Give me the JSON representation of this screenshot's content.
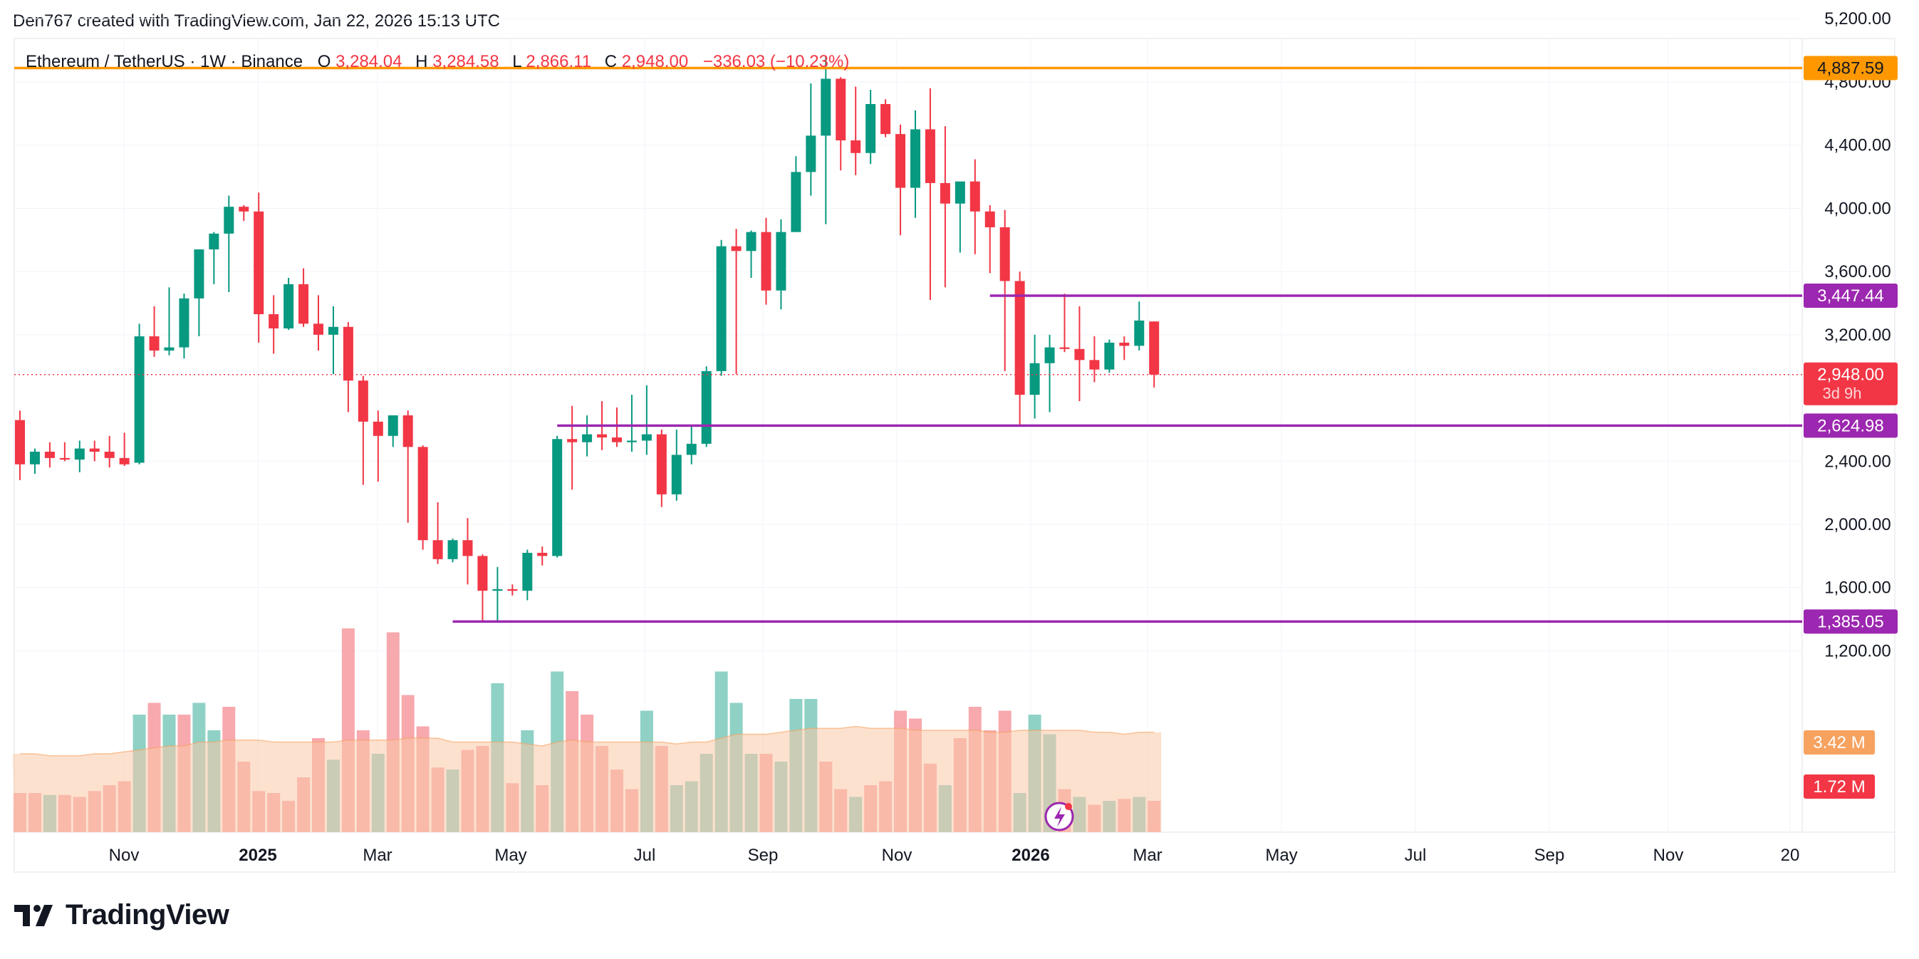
{
  "credit": "Den767 created with TradingView.com, Jan 22, 2026 15:13 UTC",
  "brand": "TradingView",
  "header": {
    "symbol": "Ethereum / TetherUS · 1W · Binance",
    "open_label": "O",
    "open": "3,284.04",
    "high_label": "H",
    "high": "3,284.58",
    "low_label": "L",
    "low": "2,866.11",
    "close_label": "C",
    "close": "2,948.00",
    "change": "−336.03 (−10.23%)"
  },
  "colors": {
    "up": "#089981",
    "down": "#f23645",
    "vol_up": "#8fd1c5",
    "vol_down": "#f7a9ad",
    "vma_fill": "#fbc8a8",
    "vma_line": "#f7a25f",
    "orange_level": "#ff9800",
    "purple_level": "#9c27b0",
    "grid": "#f0f3fa",
    "axis_text": "#131722"
  },
  "chart_data": {
    "type": "candlestick",
    "timeframe": "1W",
    "y_axis": {
      "range": [
        1000,
        5350
      ],
      "ticks": [
        "1,200.00",
        "1,600.00",
        "2,000.00",
        "2,400.00",
        "3,200.00",
        "3,600.00",
        "4,000.00",
        "4,400.00",
        "4,800.00",
        "5,200.00"
      ]
    },
    "x_axis": {
      "labels": [
        {
          "text": "Nov",
          "bold": false
        },
        {
          "text": "2025",
          "bold": true
        },
        {
          "text": "Mar",
          "bold": false
        },
        {
          "text": "May",
          "bold": false
        },
        {
          "text": "Jul",
          "bold": false
        },
        {
          "text": "Sep",
          "bold": false
        },
        {
          "text": "Nov",
          "bold": false
        },
        {
          "text": "2026",
          "bold": true
        },
        {
          "text": "Mar",
          "bold": false
        },
        {
          "text": "May",
          "bold": false
        },
        {
          "text": "Jul",
          "bold": false
        },
        {
          "text": "Sep",
          "bold": false
        },
        {
          "text": "Nov",
          "bold": false
        },
        {
          "text": "20",
          "bold": false
        }
      ]
    },
    "price_labels": {
      "orange_level": "4,887.59",
      "upper_purple": "3,447.44",
      "current": "2,948.00",
      "countdown": "3d 9h",
      "lower_purple": "2,624.98",
      "bottom_purple": "1,385.05",
      "volume_ma": "3.42 M",
      "volume": "1.72 M"
    },
    "levels": [
      {
        "name": "orange-resistance",
        "price": 4887.59,
        "start_index": 0
      },
      {
        "name": "upper-purple",
        "price": 3447.44,
        "start_index": 65
      },
      {
        "name": "lower-purple",
        "price": 2624.98,
        "start_index": 36
      },
      {
        "name": "bottom-purple",
        "price": 1385.05,
        "start_index": 29
      }
    ],
    "candles": [
      [
        2660,
        2720,
        2280,
        2380
      ],
      [
        2380,
        2480,
        2320,
        2460
      ],
      [
        2460,
        2520,
        2360,
        2420
      ],
      [
        2420,
        2520,
        2400,
        2410
      ],
      [
        2410,
        2530,
        2330,
        2480
      ],
      [
        2480,
        2530,
        2400,
        2460
      ],
      [
        2460,
        2560,
        2360,
        2420
      ],
      [
        2420,
        2580,
        2370,
        2380
      ],
      [
        2390,
        3270,
        2380,
        3190
      ],
      [
        3190,
        3380,
        3060,
        3100
      ],
      [
        3100,
        3500,
        3070,
        3120
      ],
      [
        3120,
        3460,
        3050,
        3430
      ],
      [
        3430,
        3740,
        3190,
        3740
      ],
      [
        3740,
        3850,
        3520,
        3840
      ],
      [
        3840,
        4080,
        3470,
        4010
      ],
      [
        4010,
        4020,
        3920,
        3980
      ],
      [
        3980,
        4100,
        3150,
        3330
      ],
      [
        3330,
        3450,
        3080,
        3240
      ],
      [
        3240,
        3560,
        3230,
        3520
      ],
      [
        3520,
        3620,
        3250,
        3270
      ],
      [
        3270,
        3450,
        3100,
        3200
      ],
      [
        3200,
        3380,
        2950,
        3250
      ],
      [
        3250,
        3280,
        2710,
        2910
      ],
      [
        2910,
        2940,
        2250,
        2650
      ],
      [
        2650,
        2720,
        2270,
        2560
      ],
      [
        2560,
        2690,
        2490,
        2690
      ],
      [
        2690,
        2720,
        2010,
        2490
      ],
      [
        2490,
        2500,
        1840,
        1900
      ],
      [
        1900,
        2140,
        1750,
        1780
      ],
      [
        1780,
        1910,
        1760,
        1900
      ],
      [
        1900,
        2040,
        1620,
        1800
      ],
      [
        1800,
        1810,
        1380,
        1580
      ],
      [
        1580,
        1730,
        1390,
        1590
      ],
      [
        1590,
        1620,
        1550,
        1580
      ],
      [
        1580,
        1840,
        1520,
        1820
      ],
      [
        1820,
        1860,
        1740,
        1800
      ],
      [
        1800,
        2560,
        1790,
        2540
      ],
      [
        2540,
        2750,
        2220,
        2520
      ],
      [
        2520,
        2690,
        2430,
        2570
      ],
      [
        2570,
        2780,
        2470,
        2550
      ],
      [
        2550,
        2740,
        2490,
        2520
      ],
      [
        2520,
        2820,
        2460,
        2530
      ],
      [
        2530,
        2880,
        2440,
        2570
      ],
      [
        2570,
        2600,
        2110,
        2190
      ],
      [
        2190,
        2600,
        2150,
        2440
      ],
      [
        2440,
        2620,
        2380,
        2510
      ],
      [
        2510,
        3000,
        2490,
        2970
      ],
      [
        2970,
        3800,
        2940,
        3760
      ],
      [
        3760,
        3870,
        2950,
        3730
      ],
      [
        3730,
        3860,
        3560,
        3850
      ],
      [
        3850,
        3940,
        3390,
        3480
      ],
      [
        3480,
        3930,
        3360,
        3850
      ],
      [
        3850,
        4330,
        3850,
        4230
      ],
      [
        4230,
        4790,
        4080,
        4460
      ],
      [
        4460,
        4960,
        3900,
        4820
      ],
      [
        4820,
        4830,
        4240,
        4430
      ],
      [
        4430,
        4770,
        4210,
        4350
      ],
      [
        4350,
        4750,
        4280,
        4660
      ],
      [
        4660,
        4690,
        4450,
        4470
      ],
      [
        4470,
        4530,
        3830,
        4130
      ],
      [
        4130,
        4620,
        3940,
        4500
      ],
      [
        4500,
        4760,
        3420,
        4160
      ],
      [
        4160,
        4520,
        3500,
        4030
      ],
      [
        4030,
        4160,
        3720,
        4170
      ],
      [
        4170,
        4310,
        3710,
        3980
      ],
      [
        3980,
        4020,
        3590,
        3880
      ],
      [
        3880,
        3990,
        2970,
        3540
      ],
      [
        3540,
        3600,
        2620,
        2820
      ],
      [
        2820,
        3200,
        2670,
        3020
      ],
      [
        3020,
        3200,
        2710,
        3120
      ],
      [
        3120,
        3460,
        3090,
        3110
      ],
      [
        3110,
        3380,
        2780,
        3040
      ],
      [
        3040,
        3190,
        2900,
        2980
      ],
      [
        2980,
        3170,
        2960,
        3150
      ],
      [
        3150,
        3190,
        3040,
        3130
      ],
      [
        3130,
        3410,
        3100,
        3290
      ],
      [
        3284.04,
        3284.58,
        2866.11,
        2948
      ]
    ],
    "volume": [
      [
        1,
        "down"
      ],
      [
        1,
        "down"
      ],
      [
        0.95,
        "up"
      ],
      [
        0.95,
        "down"
      ],
      [
        0.9,
        "down"
      ],
      [
        1.05,
        "down"
      ],
      [
        1.2,
        "down"
      ],
      [
        1.3,
        "down"
      ],
      [
        3,
        "up"
      ],
      [
        3.3,
        "down"
      ],
      [
        3,
        "up"
      ],
      [
        3,
        "down"
      ],
      [
        3.3,
        "up"
      ],
      [
        2.6,
        "up"
      ],
      [
        3.2,
        "down"
      ],
      [
        1.8,
        "down"
      ],
      [
        1.05,
        "down"
      ],
      [
        1.0,
        "down"
      ],
      [
        0.8,
        "down"
      ],
      [
        1.4,
        "down"
      ],
      [
        2.4,
        "down"
      ],
      [
        1.85,
        "up"
      ],
      [
        5.2,
        "down"
      ],
      [
        2.6,
        "down"
      ],
      [
        2.0,
        "up"
      ],
      [
        5.1,
        "down"
      ],
      [
        3.5,
        "down"
      ],
      [
        2.7,
        "down"
      ],
      [
        1.65,
        "down"
      ],
      [
        1.6,
        "up"
      ],
      [
        2.1,
        "down"
      ],
      [
        2.2,
        "down"
      ],
      [
        3.8,
        "up"
      ],
      [
        1.25,
        "down"
      ],
      [
        2.6,
        "up"
      ],
      [
        1.2,
        "down"
      ],
      [
        4.1,
        "up"
      ],
      [
        3.6,
        "down"
      ],
      [
        3.0,
        "down"
      ],
      [
        2.2,
        "down"
      ],
      [
        1.6,
        "down"
      ],
      [
        1.1,
        "down"
      ],
      [
        3.1,
        "up"
      ],
      [
        2.2,
        "down"
      ],
      [
        1.2,
        "up"
      ],
      [
        1.3,
        "up"
      ],
      [
        2.0,
        "up"
      ],
      [
        4.1,
        "up"
      ],
      [
        3.3,
        "up"
      ],
      [
        2.0,
        "up"
      ],
      [
        2.0,
        "down"
      ],
      [
        1.8,
        "up"
      ],
      [
        3.4,
        "up"
      ],
      [
        3.4,
        "up"
      ],
      [
        1.8,
        "down"
      ],
      [
        1.1,
        "down"
      ],
      [
        0.9,
        "up"
      ],
      [
        1.2,
        "down"
      ],
      [
        1.3,
        "down"
      ],
      [
        3.1,
        "down"
      ],
      [
        2.9,
        "down"
      ],
      [
        1.75,
        "down"
      ],
      [
        1.2,
        "up"
      ],
      [
        2.4,
        "down"
      ],
      [
        3.2,
        "down"
      ],
      [
        2.6,
        "down"
      ],
      [
        3.1,
        "down"
      ],
      [
        1.0,
        "up"
      ],
      [
        3.0,
        "up"
      ],
      [
        2.5,
        "up"
      ],
      [
        1.1,
        "down"
      ],
      [
        0.9,
        "up"
      ],
      [
        0.7,
        "down"
      ],
      [
        0.8,
        "up"
      ],
      [
        0.85,
        "down"
      ],
      [
        0.9,
        "up"
      ],
      [
        0.8,
        "down"
      ]
    ],
    "volume_ma": [
      2.0,
      2.0,
      1.95,
      1.95,
      1.95,
      2.0,
      2.0,
      2.05,
      2.1,
      2.15,
      2.2,
      2.2,
      2.3,
      2.3,
      2.35,
      2.35,
      2.35,
      2.3,
      2.3,
      2.3,
      2.3,
      2.3,
      2.35,
      2.35,
      2.35,
      2.35,
      2.4,
      2.4,
      2.4,
      2.3,
      2.3,
      2.3,
      2.3,
      2.3,
      2.25,
      2.2,
      2.3,
      2.35,
      2.3,
      2.3,
      2.3,
      2.3,
      2.3,
      2.3,
      2.25,
      2.3,
      2.3,
      2.4,
      2.5,
      2.5,
      2.5,
      2.55,
      2.6,
      2.65,
      2.65,
      2.65,
      2.7,
      2.65,
      2.65,
      2.65,
      2.6,
      2.6,
      2.6,
      2.6,
      2.6,
      2.55,
      2.55,
      2.6,
      2.6,
      2.6,
      2.6,
      2.6,
      2.55,
      2.55,
      2.5,
      2.55,
      2.55
    ]
  }
}
